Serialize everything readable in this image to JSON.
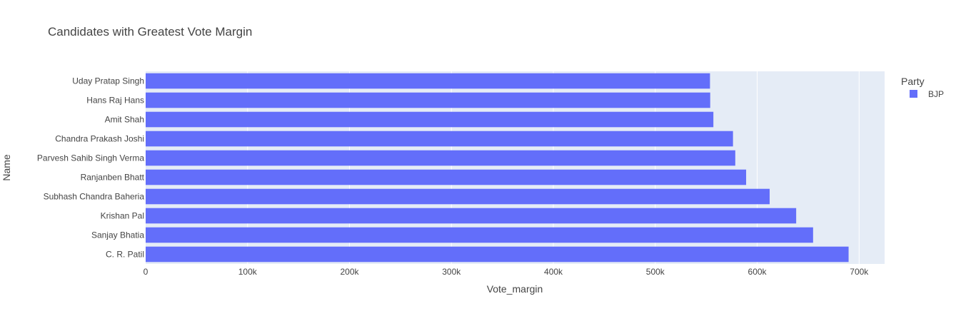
{
  "chart_data": {
    "type": "bar",
    "orientation": "horizontal",
    "title": "Candidates with Greatest Vote Margin",
    "xlabel": "Vote_margin",
    "ylabel": "Name",
    "categories": [
      "C. R. Patil",
      "Sanjay Bhatia",
      "Krishan Pal",
      "Subhash Chandra Baheria",
      "Ranjanben Bhatt",
      "Parvesh Sahib Singh Verma",
      "Chandra Prakash Joshi",
      "Amit Shah",
      "Hans Raj Hans",
      "Uday Pratap Singh"
    ],
    "series": [
      {
        "name": "BJP",
        "color": "#636efa",
        "values": [
          689668,
          654834,
          638239,
          612205,
          589136,
          578486,
          576247,
          557014,
          553897,
          553682
        ]
      }
    ],
    "xlim": [
      0,
      725000
    ],
    "xticks": [
      0,
      100000,
      200000,
      300000,
      400000,
      500000,
      600000,
      700000
    ],
    "xtick_labels": [
      "0",
      "100k",
      "200k",
      "300k",
      "400k",
      "500k",
      "600k",
      "700k"
    ],
    "grid": true,
    "plot_bgcolor": "#e5ecf6",
    "legend": {
      "title": "Party",
      "position": "right",
      "items": [
        "BJP"
      ]
    }
  }
}
